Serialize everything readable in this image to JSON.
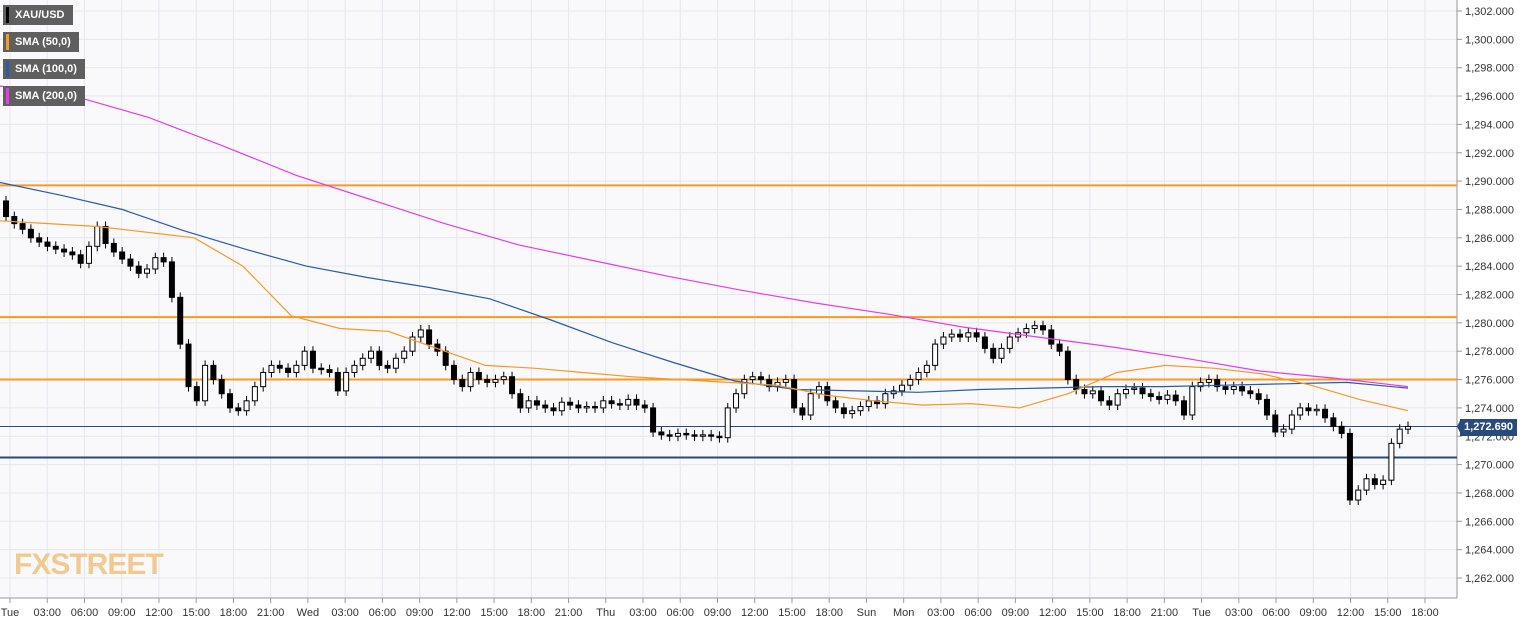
{
  "legend": [
    {
      "label": "XAU/USD",
      "color": "#000000"
    },
    {
      "label": "SMA (50,0)",
      "color": "#f59a23"
    },
    {
      "label": "SMA (100,0)",
      "color": "#2a5aa8"
    },
    {
      "label": "SMA (200,0)",
      "color": "#e83ae8"
    }
  ],
  "watermark": {
    "fx": "FX",
    "street": "STREET"
  },
  "last_price_label": "1,272.690",
  "chart_data": {
    "type": "candlestick",
    "symbol": "XAU/USD",
    "ylim": [
      1260,
      1303
    ],
    "y_ticks": [
      "1,262.000",
      "1,264.000",
      "1,266.000",
      "1,268.000",
      "1,270.000",
      "1,272.000",
      "1,274.000",
      "1,276.000",
      "1,278.000",
      "1,280.000",
      "1,282.000",
      "1,284.000",
      "1,286.000",
      "1,288.000",
      "1,290.000",
      "1,292.000",
      "1,294.000",
      "1,296.000",
      "1,298.000",
      "1,300.000",
      "1,302.000"
    ],
    "x_ticks": [
      "Tue",
      "03:00",
      "06:00",
      "09:00",
      "12:00",
      "15:00",
      "18:00",
      "21:00",
      "Wed",
      "03:00",
      "06:00",
      "09:00",
      "12:00",
      "15:00",
      "18:00",
      "21:00",
      "Thu",
      "03:00",
      "06:00",
      "09:00",
      "12:00",
      "15:00",
      "18:00",
      "Sun",
      "Mon",
      "03:00",
      "06:00",
      "09:00",
      "12:00",
      "15:00",
      "18:00",
      "21:00",
      "Tue",
      "03:00",
      "06:00",
      "09:00",
      "12:00",
      "15:00",
      "18:00"
    ],
    "grid": true,
    "horizontal_levels": [
      {
        "value": 1289.7,
        "color": "#f59a23"
      },
      {
        "value": 1280.4,
        "color": "#f59a23"
      },
      {
        "value": 1276.0,
        "color": "#f59a23"
      },
      {
        "value": 1270.5,
        "color": "#274b7a"
      },
      {
        "value": 1272.69,
        "color": "#274b7a"
      }
    ],
    "last_price": 1272.69,
    "candles_close": [
      1287.5,
      1287.0,
      1286.6,
      1286.0,
      1285.7,
      1285.4,
      1285.2,
      1285.0,
      1284.8,
      1284.2,
      1285.4,
      1286.8,
      1285.6,
      1285.0,
      1284.5,
      1284.0,
      1283.5,
      1283.8,
      1284.6,
      1284.3,
      1281.8,
      1278.5,
      1275.5,
      1274.5,
      1277.0,
      1276.0,
      1275.0,
      1274.0,
      1273.8,
      1274.5,
      1275.5,
      1276.5,
      1277.0,
      1276.8,
      1276.5,
      1277.0,
      1278.0,
      1276.8,
      1276.7,
      1276.5,
      1275.2,
      1276.5,
      1277.0,
      1277.5,
      1278.0,
      1277.0,
      1276.8,
      1277.5,
      1278.0,
      1279.0,
      1279.5,
      1278.5,
      1278.0,
      1277.0,
      1276.0,
      1275.5,
      1276.5,
      1276.0,
      1275.8,
      1276.0,
      1276.2,
      1275.0,
      1274.0,
      1274.5,
      1274.2,
      1274.0,
      1273.8,
      1274.4,
      1274.2,
      1274.0,
      1274.1,
      1274.0,
      1274.5,
      1274.3,
      1274.2,
      1274.6,
      1274.2,
      1274.0,
      1272.3,
      1272.1,
      1272.0,
      1272.2,
      1272.1,
      1272.0,
      1272.1,
      1272.0,
      1271.9,
      1274.0,
      1275.0,
      1276.0,
      1276.2,
      1276.0,
      1275.5,
      1275.8,
      1276.0,
      1274.0,
      1273.5,
      1275.0,
      1275.5,
      1274.5,
      1274.0,
      1273.6,
      1273.8,
      1274.1,
      1274.5,
      1274.3,
      1275.0,
      1275.2,
      1275.6,
      1276.0,
      1276.5,
      1277.0,
      1278.5,
      1279.0,
      1279.2,
      1279.0,
      1279.3,
      1279.0,
      1278.2,
      1277.5,
      1278.2,
      1279.0,
      1279.3,
      1279.6,
      1279.8,
      1279.5,
      1278.5,
      1278.0,
      1276.0,
      1275.3,
      1275.0,
      1275.2,
      1274.5,
      1274.2,
      1275.0,
      1275.3,
      1275.4,
      1275.0,
      1274.8,
      1274.6,
      1274.9,
      1274.5,
      1273.5,
      1275.5,
      1275.8,
      1276.0,
      1275.5,
      1275.3,
      1275.5,
      1275.2,
      1275.0,
      1274.6,
      1273.5,
      1272.3,
      1272.5,
      1273.5,
      1274.0,
      1273.8,
      1273.9,
      1273.3,
      1272.7,
      1272.2,
      1267.5,
      1268.2,
      1269.0,
      1268.6,
      1268.9,
      1271.5,
      1272.5,
      1272.69
    ],
    "sma50": [
      1287.2,
      1287.0,
      1286.8,
      1286.4,
      1286.0,
      1284.0,
      1280.5,
      1279.6,
      1279.4,
      1278.2,
      1277.0,
      1276.8,
      1276.5,
      1276.2,
      1276.0,
      1275.8,
      1275.6,
      1274.9,
      1274.5,
      1274.2,
      1274.3,
      1274.0,
      1275.0,
      1276.5,
      1277.0,
      1276.8,
      1276.4,
      1275.6,
      1274.6,
      1273.8
    ],
    "sma100": [
      1289.9,
      1289.0,
      1288.0,
      1286.5,
      1285.2,
      1284.0,
      1283.2,
      1282.5,
      1281.7,
      1280.2,
      1278.6,
      1277.2,
      1275.9,
      1275.3,
      1275.2,
      1275.1,
      1275.3,
      1275.4,
      1275.5,
      1275.5,
      1275.6,
      1275.7,
      1275.8,
      1275.4
    ],
    "sma200": [
      1296.7,
      1296.0,
      1294.5,
      1292.5,
      1290.4,
      1288.7,
      1287.0,
      1285.5,
      1284.4,
      1283.3,
      1282.3,
      1281.4,
      1280.6,
      1279.7,
      1279.0,
      1278.3,
      1277.5,
      1276.6,
      1276.1,
      1275.5
    ]
  }
}
